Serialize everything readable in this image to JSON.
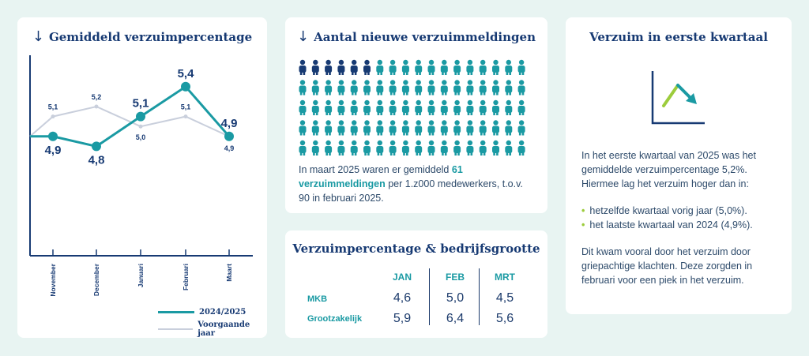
{
  "chart_data": [
    {
      "type": "line",
      "title": "Gemiddeld verzuimpercentage",
      "categories": [
        "November",
        "December",
        "Januari",
        "Februari",
        "Maart"
      ],
      "series": [
        {
          "name": "2024/2025",
          "values": [
            4.9,
            4.8,
            5.1,
            5.4,
            4.9
          ],
          "labels": [
            "4,9",
            "4,8",
            "5,1",
            "5,4",
            "4,9"
          ],
          "color": "#1a9aa3"
        },
        {
          "name": "Voorgaande jaar",
          "values": [
            5.1,
            5.2,
            5.0,
            5.1,
            4.9
          ],
          "labels": [
            "5,1",
            "5,2",
            "5,0",
            "5,1",
            "4,9"
          ],
          "color": "#c9cfdc"
        }
      ],
      "start_value_current": 4.9,
      "start_value_previous": 4.9,
      "ylim": [
        3.7,
        5.7
      ],
      "legend": "bottom-right"
    },
    {
      "type": "pictogram",
      "title": "Aantal nieuwe verzuimmeldingen",
      "columns": 18,
      "rows": 5,
      "highlighted": 6,
      "highlight_color": "#173a73",
      "base_color": "#1a9aa3"
    },
    {
      "type": "table",
      "title": "Verzuimpercentage & bedrijfsgrootte",
      "columns": [
        "JAN",
        "FEB",
        "MRT"
      ],
      "rows": [
        {
          "label": "MKB",
          "values": [
            "4,6",
            "5,0",
            "4,5"
          ]
        },
        {
          "label": "Grootzakelijk",
          "values": [
            "5,9",
            "6,4",
            "5,6"
          ]
        }
      ]
    }
  ],
  "card_icons": {
    "line_chart_arrow": "#1a9aa3",
    "pictogram_arrow": "#173a73"
  },
  "card2": {
    "text_before": "In maart 2025 waren er gemiddeld ",
    "highlight": "61 verzuimmeldingen",
    "text_after": " per 1.z000 medewerkers, t.o.v. 90 in februari 2025."
  },
  "card4": {
    "title": "Verzuim in eerste kwartaal",
    "intro": "In het eerste kwartaal van 2025 was het gemiddelde verzuimpercentage 5,2%. Hiermee lag het verzuim hoger dan in:",
    "bullets": [
      "hetzelfde kwartaal vorig jaar (5,0%).",
      "het laatste kwartaal van 2024 (4,9%)."
    ],
    "outro": "Dit kwam vooral door het verzuim door griepachtige klachten. Deze zorgden in februari voor een piek in het verzuim.",
    "icon": "trend-down-chart-icon",
    "icon_colors": {
      "axes": "#173a73",
      "up": "#9ccc3c",
      "down": "#1a9aa3"
    }
  }
}
